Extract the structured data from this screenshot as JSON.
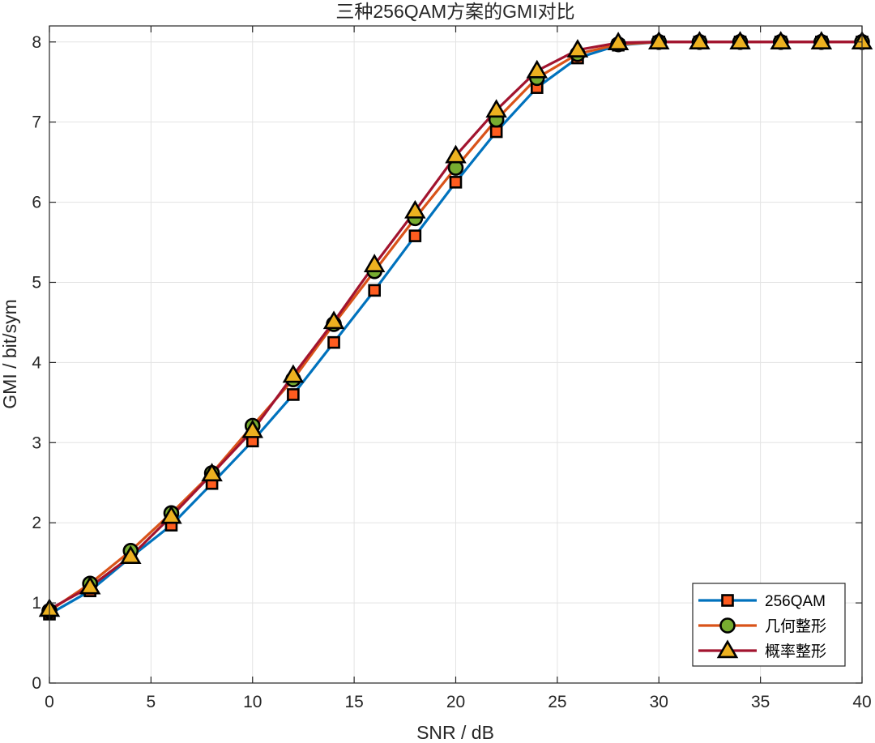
{
  "chart_data": {
    "type": "line",
    "title": "三种256QAM方案的GMI对比",
    "xlabel": "SNR / dB",
    "ylabel": "GMI / bit/sym",
    "xlim": [
      0,
      40
    ],
    "ylim": [
      0,
      8.2
    ],
    "grid": true,
    "legend_position": "bottom-right",
    "xticks": [
      0,
      5,
      10,
      15,
      20,
      25,
      30,
      35,
      40
    ],
    "yticks": [
      0,
      1,
      2,
      3,
      4,
      5,
      6,
      7,
      8
    ],
    "x": [
      0,
      2,
      4,
      6,
      8,
      10,
      12,
      14,
      16,
      18,
      20,
      22,
      24,
      26,
      28,
      30,
      32,
      34,
      36,
      38,
      40
    ],
    "series": [
      {
        "name": "256QAM",
        "marker": "square",
        "line_color": "#0072BD",
        "marker_fill": "#FF5C1F",
        "values": [
          0.86,
          1.15,
          1.57,
          1.97,
          2.49,
          3.02,
          3.6,
          4.25,
          4.9,
          5.58,
          6.25,
          6.88,
          7.43,
          7.8,
          7.96,
          8.0,
          8.0,
          8.0,
          8.0,
          8.0,
          8.0
        ]
      },
      {
        "name": "几何整形",
        "marker": "circle",
        "line_color": "#D95319",
        "marker_fill": "#77AC30",
        "values": [
          0.9,
          1.24,
          1.65,
          2.12,
          2.62,
          3.21,
          3.79,
          4.48,
          5.14,
          5.8,
          6.43,
          7.03,
          7.55,
          7.85,
          7.97,
          8.0,
          8.0,
          8.0,
          8.0,
          8.0,
          8.0
        ]
      },
      {
        "name": "概率整形",
        "marker": "triangle",
        "line_color": "#A2142F",
        "marker_fill": "#EDB120",
        "values": [
          0.92,
          1.2,
          1.58,
          2.08,
          2.61,
          3.15,
          3.84,
          4.51,
          5.22,
          5.89,
          6.58,
          7.15,
          7.64,
          7.9,
          7.99,
          8.0,
          8.0,
          8.0,
          8.0,
          8.0,
          8.0
        ]
      }
    ]
  }
}
